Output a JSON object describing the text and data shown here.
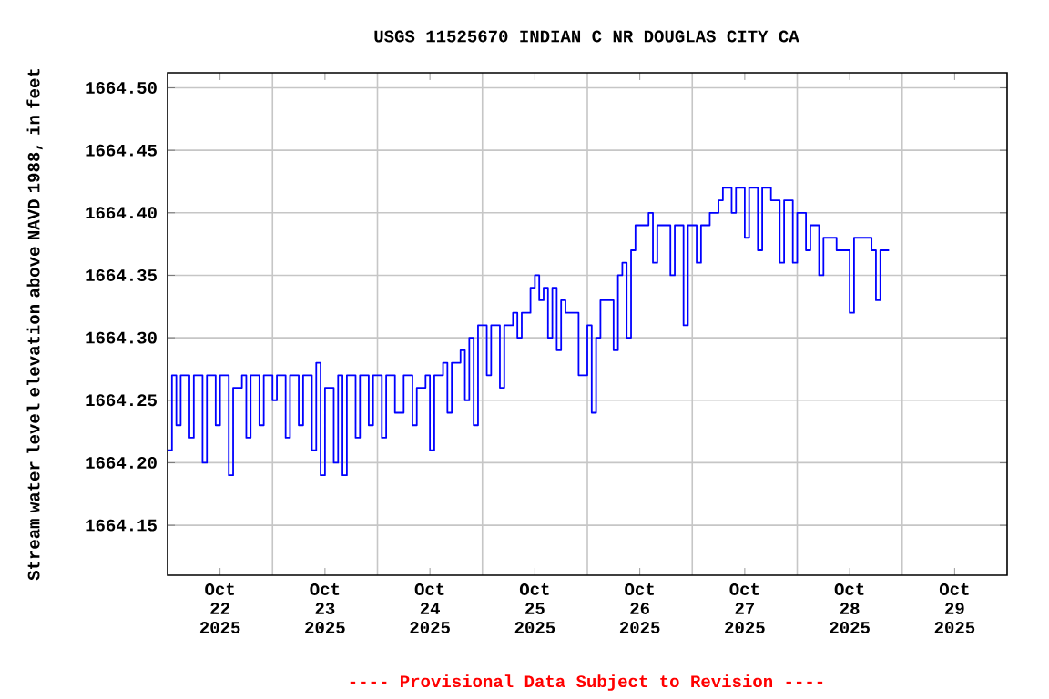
{
  "chart_data": {
    "type": "step",
    "title": "USGS 11525670 INDIAN C NR DOUGLAS CITY CA",
    "ylabel": "Stream water level elevation above NAVD 1988, in feet",
    "annotations": [
      "---- Provisional Data Subject to Revision ----"
    ],
    "xlim": [
      "2025-10-22T00:00",
      "2025-10-30T00:00"
    ],
    "xticks": [
      {
        "value": "2025-10-22T12:00",
        "label": "Oct 22 2025"
      },
      {
        "value": "2025-10-23T00:00",
        "label": null
      },
      {
        "value": "2025-10-23T12:00",
        "label": "Oct 23 2025"
      },
      {
        "value": "2025-10-24T00:00",
        "label": null
      },
      {
        "value": "2025-10-24T12:00",
        "label": "Oct 24 2025"
      },
      {
        "value": "2025-10-25T00:00",
        "label": null
      },
      {
        "value": "2025-10-25T12:00",
        "label": "Oct 25 2025"
      },
      {
        "value": "2025-10-26T00:00",
        "label": null
      },
      {
        "value": "2025-10-26T12:00",
        "label": "Oct 26 2025"
      },
      {
        "value": "2025-10-27T00:00",
        "label": null
      },
      {
        "value": "2025-10-27T12:00",
        "label": "Oct 27 2025"
      },
      {
        "value": "2025-10-28T00:00",
        "label": null
      },
      {
        "value": "2025-10-28T12:00",
        "label": "Oct 28 2025"
      },
      {
        "value": "2025-10-29T00:00",
        "label": null
      },
      {
        "value": "2025-10-29T12:00",
        "label": "Oct 29 2025"
      }
    ],
    "ylim": [
      1664.11,
      1664.512
    ],
    "yticks": [
      1664.15,
      {
        "value": 1664.2,
        "label": "1664.20"
      },
      1664.25,
      {
        "value": 1664.3,
        "label": "1664.30"
      },
      1664.35,
      {
        "value": 1664.4,
        "label": "1664.40"
      },
      1664.45,
      {
        "value": 1664.5,
        "label": "1664.50"
      }
    ],
    "grid": true,
    "series": [
      {
        "color": "#0000ff",
        "x": [
          "2025-10-22T00:00",
          "2025-10-22T01:00",
          "2025-10-22T02:00",
          "2025-10-22T03:00",
          "2025-10-22T05:00",
          "2025-10-22T06:00",
          "2025-10-22T08:00",
          "2025-10-22T09:00",
          "2025-10-22T11:00",
          "2025-10-22T12:00",
          "2025-10-22T14:00",
          "2025-10-22T15:00",
          "2025-10-22T17:00",
          "2025-10-22T18:00",
          "2025-10-22T19:00",
          "2025-10-22T21:00",
          "2025-10-22T22:00",
          "2025-10-23T00:00",
          "2025-10-23T01:00",
          "2025-10-23T03:00",
          "2025-10-23T04:00",
          "2025-10-23T06:00",
          "2025-10-23T07:00",
          "2025-10-23T09:00",
          "2025-10-23T10:00",
          "2025-10-23T11:00",
          "2025-10-23T12:00",
          "2025-10-23T14:00",
          "2025-10-23T15:00",
          "2025-10-23T16:00",
          "2025-10-23T17:00",
          "2025-10-23T19:00",
          "2025-10-23T20:00",
          "2025-10-23T22:00",
          "2025-10-23T23:00",
          "2025-10-24T01:00",
          "2025-10-24T02:00",
          "2025-10-24T04:00",
          "2025-10-24T06:00",
          "2025-10-24T08:00",
          "2025-10-24T09:00",
          "2025-10-24T11:00",
          "2025-10-24T12:00",
          "2025-10-24T13:00",
          "2025-10-24T15:00",
          "2025-10-24T16:00",
          "2025-10-24T17:00",
          "2025-10-24T19:00",
          "2025-10-24T20:00",
          "2025-10-24T21:00",
          "2025-10-24T22:00",
          "2025-10-24T23:00",
          "2025-10-25T01:00",
          "2025-10-25T02:00",
          "2025-10-25T04:00",
          "2025-10-25T05:00",
          "2025-10-25T07:00",
          "2025-10-25T08:00",
          "2025-10-25T09:00",
          "2025-10-25T11:00",
          "2025-10-25T12:00",
          "2025-10-25T13:00",
          "2025-10-25T14:00",
          "2025-10-25T15:00",
          "2025-10-25T16:00",
          "2025-10-25T17:00",
          "2025-10-25T18:00",
          "2025-10-25T19:00",
          "2025-10-25T21:00",
          "2025-10-25T22:00",
          "2025-10-26T00:00",
          "2025-10-26T01:00",
          "2025-10-26T02:00",
          "2025-10-26T03:00",
          "2025-10-26T05:00",
          "2025-10-26T06:00",
          "2025-10-26T07:00",
          "2025-10-26T08:00",
          "2025-10-26T09:00",
          "2025-10-26T10:00",
          "2025-10-26T11:00",
          "2025-10-26T13:00",
          "2025-10-26T14:00",
          "2025-10-26T15:00",
          "2025-10-26T16:00",
          "2025-10-26T18:00",
          "2025-10-26T19:00",
          "2025-10-26T20:00",
          "2025-10-26T22:00",
          "2025-10-26T23:00",
          "2025-10-27T01:00",
          "2025-10-27T02:00",
          "2025-10-27T04:00",
          "2025-10-27T06:00",
          "2025-10-27T07:00",
          "2025-10-27T09:00",
          "2025-10-27T10:00",
          "2025-10-27T12:00",
          "2025-10-27T13:00",
          "2025-10-27T15:00",
          "2025-10-27T16:00",
          "2025-10-27T18:00",
          "2025-10-27T20:00",
          "2025-10-27T21:00",
          "2025-10-27T23:00",
          "2025-10-28T00:00",
          "2025-10-28T02:00",
          "2025-10-28T03:00",
          "2025-10-28T05:00",
          "2025-10-28T06:00",
          "2025-10-28T08:00",
          "2025-10-28T09:00",
          "2025-10-28T11:00",
          "2025-10-28T12:00",
          "2025-10-28T13:00",
          "2025-10-28T15:00",
          "2025-10-28T17:00",
          "2025-10-28T18:00",
          "2025-10-28T19:00",
          "2025-10-28T21:00"
        ],
        "values": [
          1664.21,
          1664.27,
          1664.23,
          1664.27,
          1664.22,
          1664.27,
          1664.2,
          1664.27,
          1664.23,
          1664.27,
          1664.19,
          1664.26,
          1664.27,
          1664.22,
          1664.27,
          1664.23,
          1664.27,
          1664.25,
          1664.27,
          1664.22,
          1664.27,
          1664.23,
          1664.27,
          1664.21,
          1664.28,
          1664.19,
          1664.26,
          1664.2,
          1664.27,
          1664.19,
          1664.27,
          1664.22,
          1664.27,
          1664.23,
          1664.27,
          1664.22,
          1664.27,
          1664.24,
          1664.27,
          1664.23,
          1664.26,
          1664.27,
          1664.21,
          1664.27,
          1664.28,
          1664.24,
          1664.28,
          1664.29,
          1664.25,
          1664.3,
          1664.23,
          1664.31,
          1664.27,
          1664.31,
          1664.26,
          1664.31,
          1664.32,
          1664.3,
          1664.32,
          1664.34,
          1664.35,
          1664.33,
          1664.34,
          1664.3,
          1664.34,
          1664.29,
          1664.33,
          1664.32,
          1664.32,
          1664.27,
          1664.31,
          1664.24,
          1664.3,
          1664.33,
          1664.33,
          1664.29,
          1664.35,
          1664.36,
          1664.3,
          1664.37,
          1664.39,
          1664.39,
          1664.4,
          1664.36,
          1664.39,
          1664.39,
          1664.35,
          1664.39,
          1664.31,
          1664.39,
          1664.36,
          1664.39,
          1664.4,
          1664.41,
          1664.42,
          1664.4,
          1664.42,
          1664.38,
          1664.42,
          1664.37,
          1664.42,
          1664.41,
          1664.36,
          1664.41,
          1664.36,
          1664.4,
          1664.37,
          1664.39,
          1664.35,
          1664.38,
          1664.38,
          1664.37,
          1664.37,
          1664.32,
          1664.38,
          1664.38,
          1664.37,
          1664.33,
          1664.37,
          1664.37
        ]
      }
    ]
  }
}
